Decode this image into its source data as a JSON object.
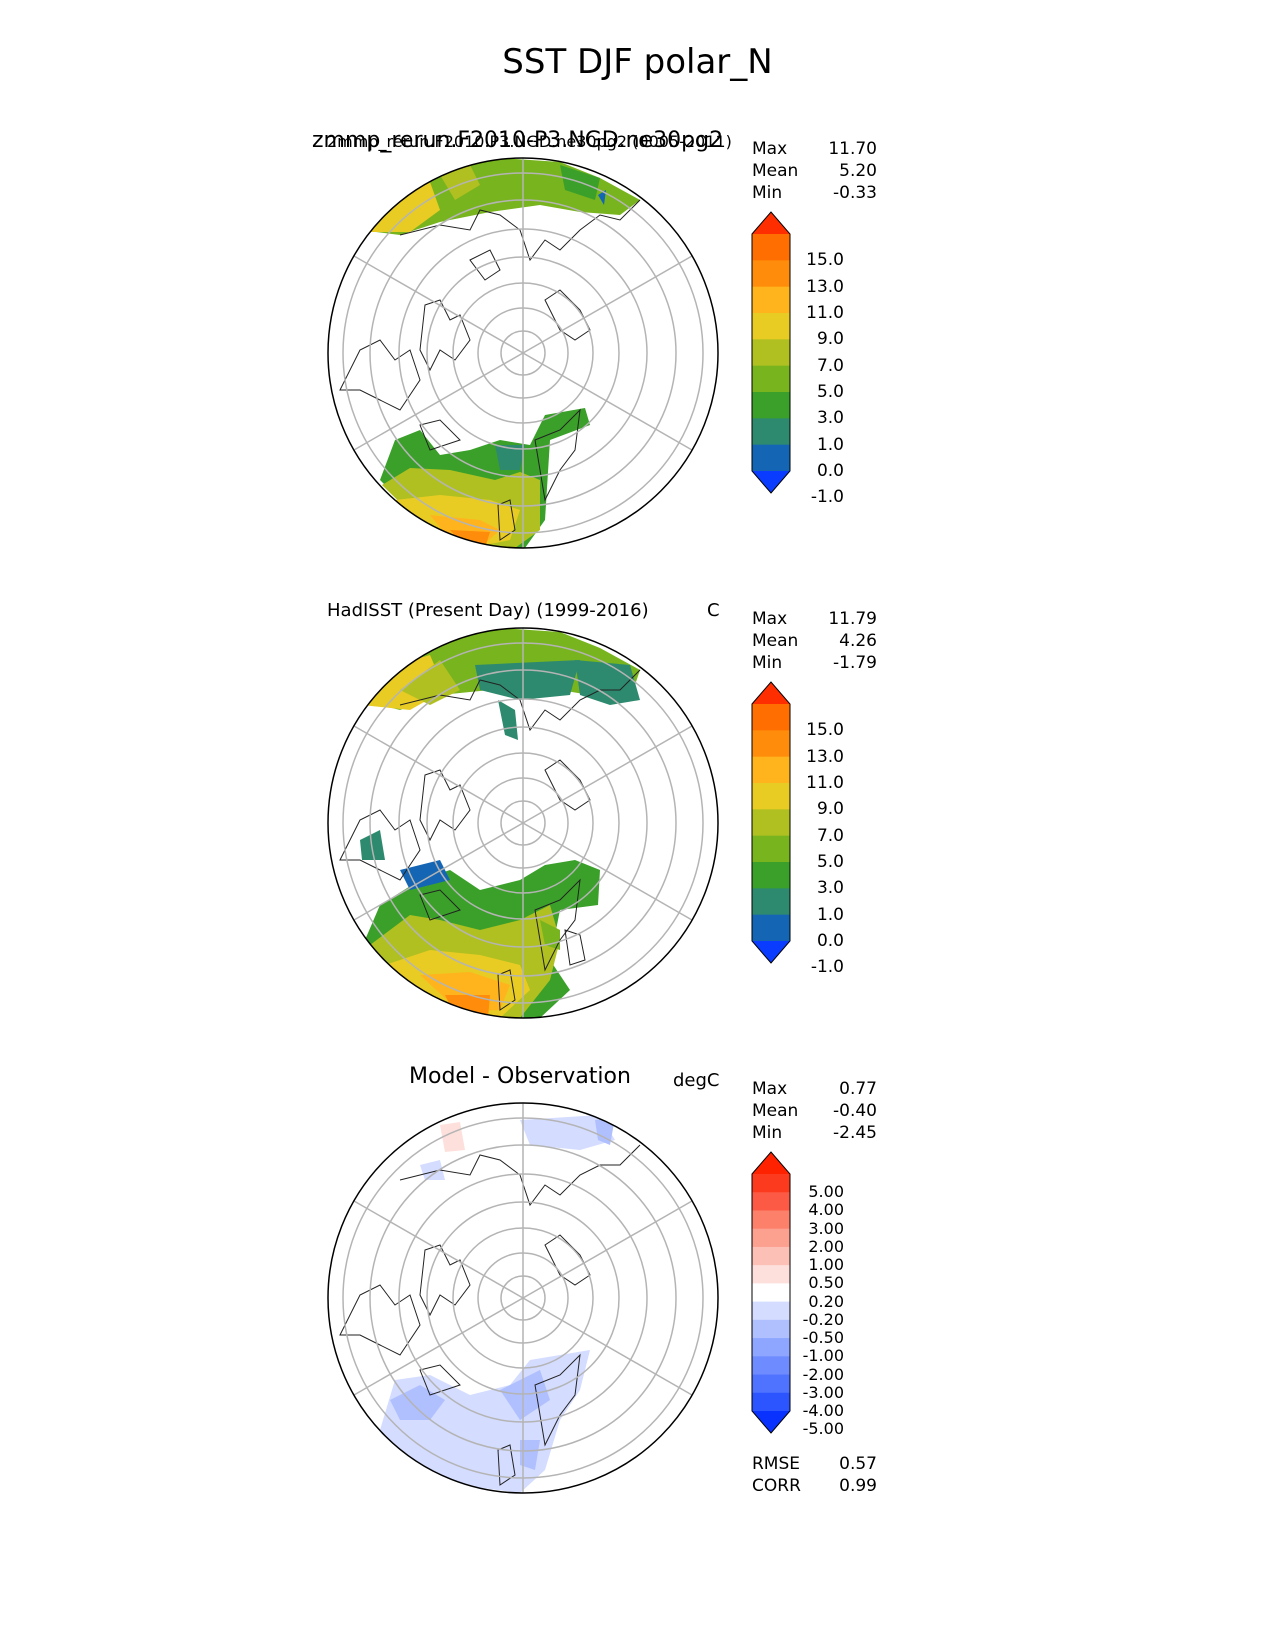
{
  "title": "SST DJF polar_N",
  "panels": [
    {
      "id": "test",
      "title": "zmmp_rerun.F2010-P3.NGD.ne30pg2",
      "subtitle": "2mmp_rerun.F2010.P3.NGD.ne30pg2 (0005-2011)",
      "units": "",
      "stats": [
        {
          "label": "Max",
          "value": "11.70"
        },
        {
          "label": "Mean",
          "value": "5.20"
        },
        {
          "label": "Min",
          "value": "-0.33"
        }
      ],
      "colorbar_ticks": [
        "15.0",
        "13.0",
        "11.0",
        "9.0",
        "7.0",
        "5.0",
        "3.0",
        "1.0",
        "0.0",
        "-1.0"
      ]
    },
    {
      "id": "ref",
      "title": "HadISST (Present Day) (1999-2016)",
      "subtitle": "",
      "units": "C",
      "stats": [
        {
          "label": "Max",
          "value": "11.79"
        },
        {
          "label": "Mean",
          "value": "4.26"
        },
        {
          "label": "Min",
          "value": "-1.79"
        }
      ],
      "colorbar_ticks": [
        "15.0",
        "13.0",
        "11.0",
        "9.0",
        "7.0",
        "5.0",
        "3.0",
        "1.0",
        "0.0",
        "-1.0"
      ]
    },
    {
      "id": "diff",
      "title": "Model - Observation",
      "subtitle": "",
      "units": "degC",
      "stats": [
        {
          "label": "Max",
          "value": "0.77"
        },
        {
          "label": "Mean",
          "value": "-0.40"
        },
        {
          "label": "Min",
          "value": "-2.45"
        }
      ],
      "colorbar_ticks": [
        "5.00",
        "4.00",
        "3.00",
        "2.00",
        "1.00",
        "0.50",
        "0.20",
        "-0.20",
        "-0.50",
        "-1.00",
        "-2.00",
        "-3.00",
        "-4.00",
        "-5.00"
      ],
      "extra_stats": [
        {
          "label": "RMSE",
          "value": "0.57"
        },
        {
          "label": "CORR",
          "value": "0.99"
        }
      ]
    }
  ],
  "chart_data": [
    {
      "type": "heatmap",
      "projection": "north polar stereographic",
      "title": "zmmp_rerun.F2010-P3.NGD.ne30pg2",
      "levels": [
        -1.0,
        0.0,
        1.0,
        3.0,
        5.0,
        7.0,
        9.0,
        11.0,
        13.0,
        15.0
      ],
      "colors": [
        "#0a3cff",
        "#1466b4",
        "#2e8a6e",
        "#3aa02a",
        "#78b41e",
        "#b0c020",
        "#e8cc24",
        "#ffb41e",
        "#ff8c0a",
        "#ff6e00",
        "#ff2e00"
      ],
      "stats": {
        "max": 11.7,
        "mean": 5.2,
        "min": -0.33
      }
    },
    {
      "type": "heatmap",
      "projection": "north polar stereographic",
      "title": "HadISST (Present Day) (1999-2016)",
      "units": "C",
      "levels": [
        -1.0,
        0.0,
        1.0,
        3.0,
        5.0,
        7.0,
        9.0,
        11.0,
        13.0,
        15.0
      ],
      "colors": [
        "#0a3cff",
        "#1466b4",
        "#2e8a6e",
        "#3aa02a",
        "#78b41e",
        "#b0c020",
        "#e8cc24",
        "#ffb41e",
        "#ff8c0a",
        "#ff6e00",
        "#ff2e00"
      ],
      "stats": {
        "max": 11.79,
        "mean": 4.26,
        "min": -1.79
      }
    },
    {
      "type": "heatmap",
      "projection": "north polar stereographic",
      "title": "Model - Observation",
      "units": "degC",
      "levels": [
        -5.0,
        -4.0,
        -3.0,
        -2.0,
        -1.0,
        -0.5,
        -0.2,
        0.2,
        0.5,
        1.0,
        2.0,
        3.0,
        4.0,
        5.0
      ],
      "colors": [
        "#0a32ff",
        "#2c55ff",
        "#4f72ff",
        "#6e8cff",
        "#8ea6ff",
        "#b0c0ff",
        "#d4dcff",
        "#ffffff",
        "#fde0dc",
        "#fcc0b6",
        "#fca090",
        "#fc806a",
        "#fc5a44",
        "#fc3a1e",
        "#ff2200"
      ],
      "stats": {
        "max": 0.77,
        "mean": -0.4,
        "min": -2.45,
        "rmse": 0.57,
        "corr": 0.99
      }
    }
  ]
}
